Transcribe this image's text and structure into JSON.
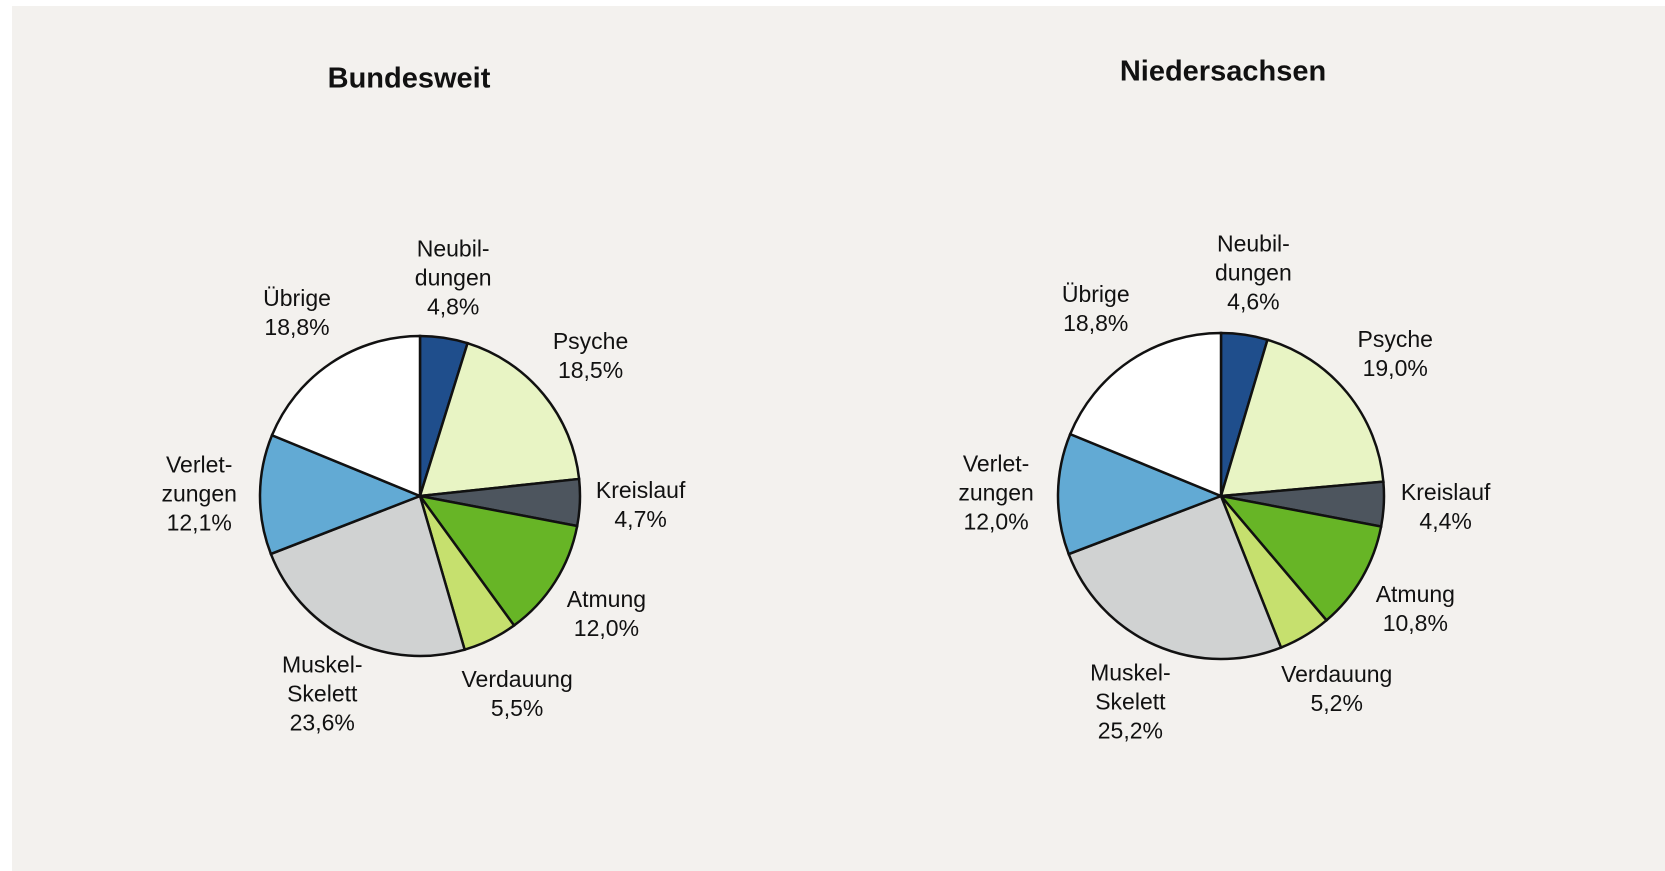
{
  "chart_data": [
    {
      "type": "pie",
      "title": "Bundesweit",
      "categories": [
        "Neubil-\ndungen",
        "Psyche",
        "Kreislauf",
        "Atmung",
        "Verdauung",
        "Muskel-\nSkelett",
        "Verlet-\nzungen",
        "Übrige"
      ],
      "values": [
        4.8,
        18.5,
        4.7,
        12.0,
        5.5,
        23.6,
        12.1,
        18.8
      ],
      "value_labels": [
        "4,8%",
        "18,5%",
        "4,7%",
        "12,0%",
        "5,5%",
        "23,6%",
        "12,1%",
        "18,8%"
      ],
      "colors": [
        "#1f4e8c",
        "#e8f4c4",
        "#4d555e",
        "#67b526",
        "#c6e06e",
        "#d0d2d2",
        "#62aad4",
        "#ffffff"
      ]
    },
    {
      "type": "pie",
      "title": "Niedersachsen",
      "categories": [
        "Neubil-\ndungen",
        "Psyche",
        "Kreislauf",
        "Atmung",
        "Verdauung",
        "Muskel-\nSkelett",
        "Verlet-\nzungen",
        "Übrige"
      ],
      "values": [
        4.6,
        19.0,
        4.4,
        10.8,
        5.2,
        25.2,
        12.0,
        18.8
      ],
      "value_labels": [
        "4,6%",
        "19,0%",
        "4,4%",
        "10,8%",
        "5,2%",
        "25,2%",
        "12,0%",
        "18,8%"
      ],
      "colors": [
        "#1f4e8c",
        "#e8f4c4",
        "#4d555e",
        "#67b526",
        "#c6e06e",
        "#d0d2d2",
        "#62aad4",
        "#ffffff"
      ]
    }
  ]
}
